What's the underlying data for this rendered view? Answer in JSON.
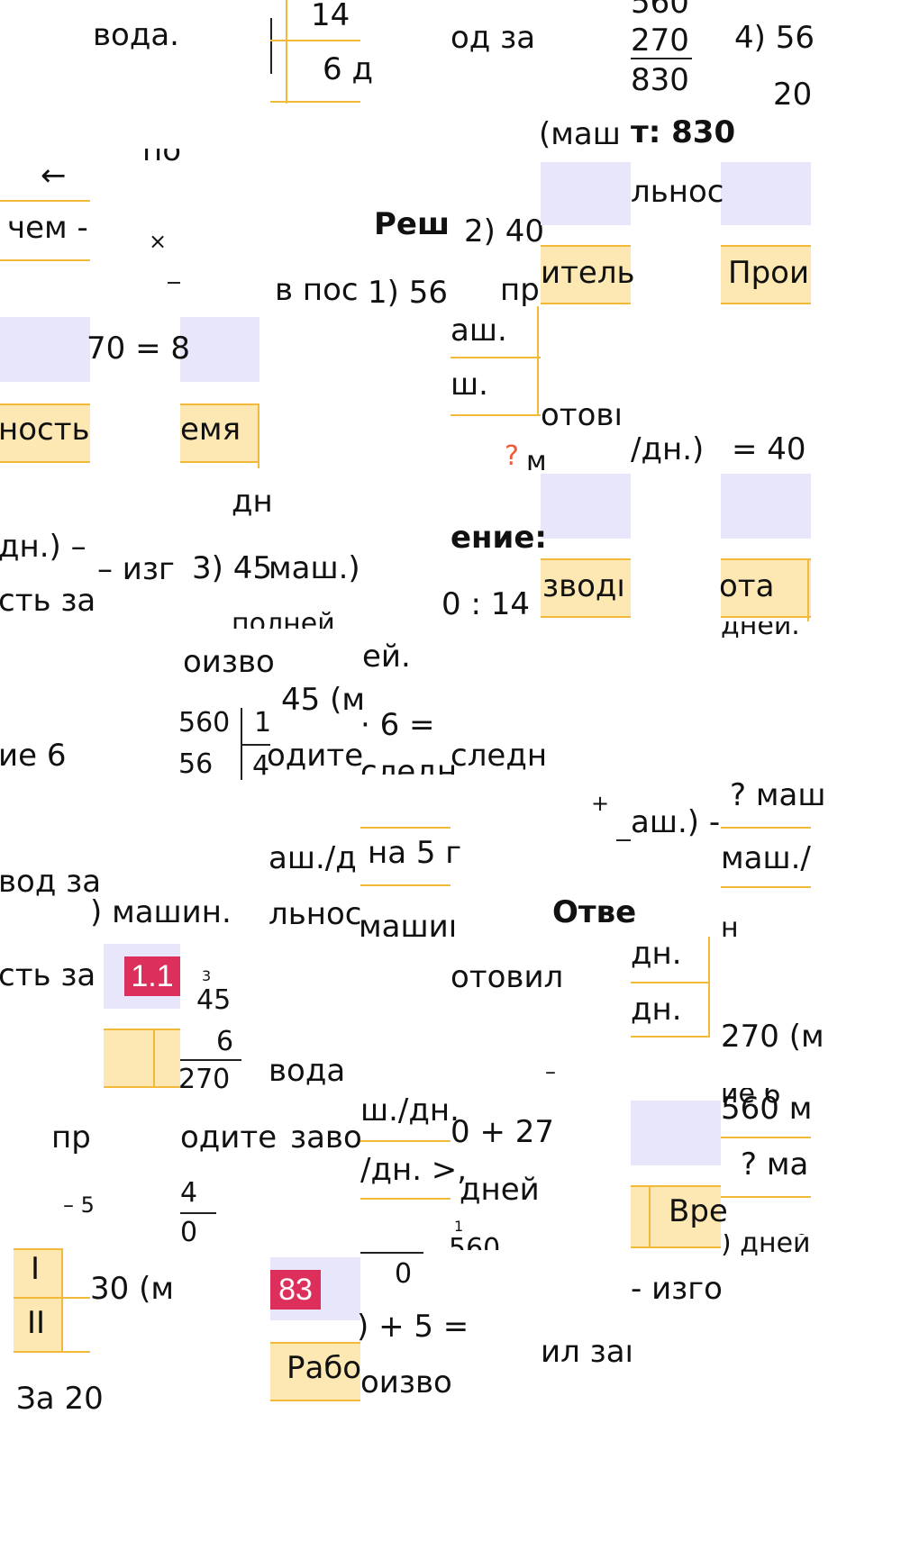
{
  "tiles": {
    "r0": {
      "voda": "вода.",
      "n14": "14",
      "d6": "6 д",
      "odza": "од за",
      "n560": "560",
      "n270": "270",
      "n830": "830",
      "n4_56": "4) 56",
      "n20": "20"
    },
    "r1": {
      "cut_po": "по",
      "arrow": "←",
      "chem": "чем -",
      "times": "×",
      "resh": "Реш",
      "n2_40": "2) 40",
      "mash_q": "(маш",
      "otvet_830": "т: 830",
      "lnos": "льнос",
      "pr": "пр",
      "itel": "итель",
      "proi": "Прои"
    },
    "r2": {
      "v_pos": "в пос",
      "n1_56": "1) 56",
      "mash1": "аш.",
      "sh1": "ш.",
      "eq70": "70 = 8",
      "nost": "ность",
      "emya": "емя",
      "otovi": "отовı",
      "dn_eq": "/дн.)",
      "eq40": "= 40",
      "q": "?",
      "m_dot": "м"
    },
    "r3": {
      "dn": "дн",
      "dn_minus": "дн.) –",
      "izg": "– изг",
      "n3_45": "3) 45",
      "mash2": "маш.)",
      "enie": "ение:",
      "st_za": "сть за",
      "colon14": "0 : 14",
      "zvod": "зводı",
      "ota": "ота",
      "pol": "полней",
      "dney": "дней."
    },
    "r4": {
      "oizv": "оизво",
      "ey": "ей.",
      "n45m": "45 (м",
      "mul6": "· 6 =",
      "ie6": "ие 6",
      "d560": "560",
      "d1": "1",
      "d56": "56",
      "d4": "4",
      "odite": "одите",
      "sled": "следн",
      "sledn2": "следн"
    },
    "r5": {
      "plus": "+",
      "ash_minus": "аш.) -",
      "q_mash": "? маш",
      "mash_d": "аш./д",
      "na5": "на 5 г",
      "mash_over": "маш./",
      "vod_za": "вод за",
      "machin": ") машин.",
      "lnos2": "льнос",
      "mashi": "машиı",
      "otve": "Отве",
      "n_h": "н"
    },
    "r6": {
      "st_za2": "сть за",
      "badge11": "1.1",
      "s3": "3",
      "n45b": "45",
      "otovil": "отовил",
      "dn_a": "дн.",
      "dn_b": "дн.",
      "n6": "6",
      "n270b": "270",
      "voda2": "вода",
      "dash": "–",
      "n270m": "270 (м",
      "ie6b": "ие 6"
    },
    "r7": {
      "pr2": "пр",
      "odite2": "одите",
      "zavo": "заво",
      "sh_dn": "ш./дн.",
      "n0_27": "0 + 27",
      "n560m": "560 м",
      "dn_gt": "/дн. >,",
      "dney2": "дней",
      "q_ma": "? ма",
      "minus5": "– 5",
      "f4": "4",
      "f0": "0",
      "s1": "1",
      "n560c": "560",
      "vre": "Вре",
      "dney3": ") дней"
    },
    "r8": {
      "rI": "I",
      "rII": "II",
      "n30m": "30 (м",
      "badge83": "83",
      "z0": "0",
      "izgo": "- изго",
      "plus5": ") + 5 =",
      "il_za": "ил заı",
      "rabo": "Рабо",
      "oizvo": "оизво",
      "za20": "За 20"
    }
  },
  "colors": {
    "tile_lavender": "#e8e6fb",
    "cell_yellow": "#fde8b4",
    "rule_yellow": "#f2b93a",
    "badge_red": "#dc2f5b",
    "question_red": "#f05a3c"
  }
}
